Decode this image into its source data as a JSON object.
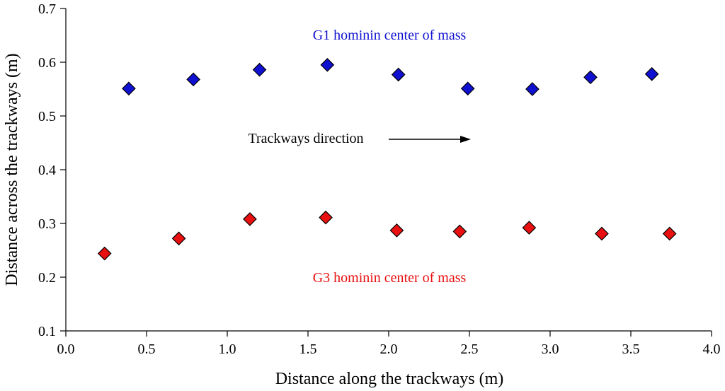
{
  "chart_data": {
    "type": "scatter",
    "xlabel": "Distance along the trackways (m)",
    "ylabel": "Distance across the trackways (m)",
    "xlim": [
      0.0,
      4.0
    ],
    "ylim": [
      0.1,
      0.7
    ],
    "xticks": [
      "0.0",
      "0.5",
      "1.0",
      "1.5",
      "2.0",
      "2.5",
      "3.0",
      "3.5",
      "4.0"
    ],
    "yticks": [
      "0.1",
      "0.2",
      "0.3",
      "0.4",
      "0.5",
      "0.6",
      "0.7"
    ],
    "grid": false,
    "marker": "diamond",
    "series": [
      {
        "name": "G1 hominin center of mass",
        "color": "#1010d0",
        "points": [
          {
            "x": 0.39,
            "y": 0.551
          },
          {
            "x": 0.79,
            "y": 0.568
          },
          {
            "x": 1.2,
            "y": 0.586
          },
          {
            "x": 1.62,
            "y": 0.595
          },
          {
            "x": 2.06,
            "y": 0.577
          },
          {
            "x": 2.49,
            "y": 0.551
          },
          {
            "x": 2.89,
            "y": 0.55
          },
          {
            "x": 3.25,
            "y": 0.572
          },
          {
            "x": 3.63,
            "y": 0.578
          }
        ]
      },
      {
        "name": "G3 hominin center of mass",
        "color": "#e81010",
        "points": [
          {
            "x": 0.24,
            "y": 0.244
          },
          {
            "x": 0.7,
            "y": 0.272
          },
          {
            "x": 1.14,
            "y": 0.308
          },
          {
            "x": 1.61,
            "y": 0.311
          },
          {
            "x": 2.05,
            "y": 0.287
          },
          {
            "x": 2.44,
            "y": 0.285
          },
          {
            "x": 2.87,
            "y": 0.292
          },
          {
            "x": 3.32,
            "y": 0.281
          },
          {
            "x": 3.74,
            "y": 0.281
          }
        ]
      }
    ],
    "annotations": {
      "g1_label": "G1 hominin center of mass",
      "g3_label": "G3 hominin center of mass",
      "direction_label": "Trackways direction",
      "g1_color": "#1010d0",
      "g3_color": "#e81010"
    }
  }
}
